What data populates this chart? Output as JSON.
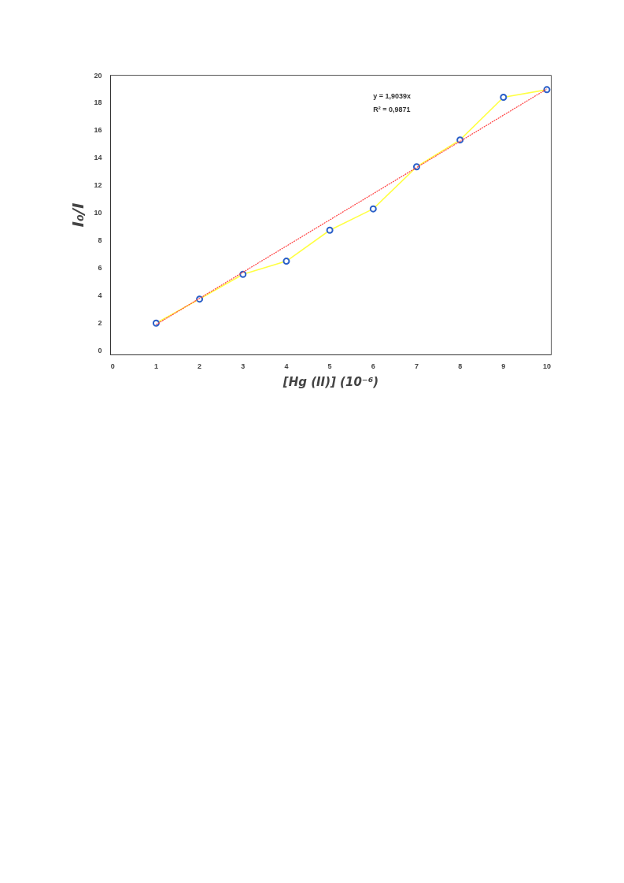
{
  "chart_data": {
    "type": "scatter",
    "xlabel": "[Hg (II)] (10⁻⁶)",
    "ylabel": "I₀/I",
    "x": [
      1,
      2,
      3,
      4,
      5,
      6,
      7,
      8,
      9,
      10
    ],
    "series": [
      {
        "type": "line",
        "color": "#ffff44",
        "marker": "none",
        "values": [
          2.0,
          3.75,
          5.55,
          6.5,
          8.75,
          10.3,
          13.35,
          15.3,
          18.4,
          18.95
        ]
      },
      {
        "color": "#2a5fc8",
        "marker": "circle",
        "values": [
          2.0,
          3.75,
          5.55,
          6.5,
          8.75,
          10.3,
          13.35,
          15.3,
          18.4,
          18.95
        ]
      },
      {
        "type": "line",
        "color": "#ff4040",
        "marker": "none",
        "line_style": "dotted",
        "x": [
          1,
          10
        ],
        "values": [
          1.9,
          19.0
        ]
      }
    ],
    "annotations": [
      "y = 1,9039x",
      "R² = 0,9871"
    ],
    "xlim": [
      -0.05,
      10.1
    ],
    "ylim": [
      -0.3,
      20
    ],
    "xticks": [
      0,
      1,
      2,
      3,
      4,
      5,
      6,
      7,
      8,
      9,
      10
    ],
    "yticks": [
      0,
      2,
      4,
      6,
      8,
      10,
      12,
      14,
      16,
      18,
      20
    ],
    "grid": false
  }
}
